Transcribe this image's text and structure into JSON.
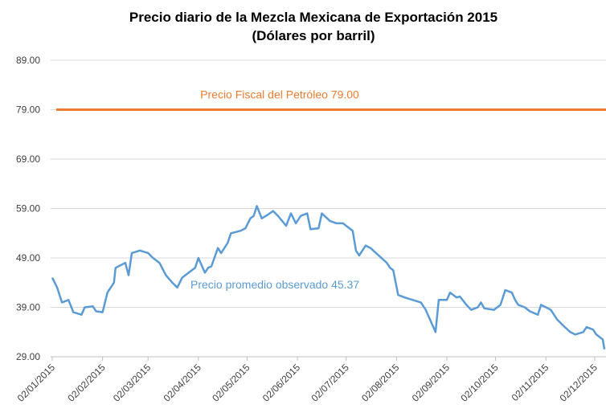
{
  "chart_data": {
    "type": "line",
    "title": "Precio diario de la Mezcla Mexicana de Exportación 2015",
    "subtitle": "(Dólares por barril)",
    "x": [
      "02/01/2015",
      "05/01/2015",
      "08/01/2015",
      "12/01/2015",
      "15/01/2015",
      "20/01/2015",
      "22/01/2015",
      "27/01/2015",
      "29/01/2015",
      "02/02/2015",
      "05/02/2015",
      "09/02/2015",
      "10/02/2015",
      "16/02/2015",
      "18/02/2015",
      "20/02/2015",
      "25/02/2015",
      "02/03/2015",
      "05/03/2015",
      "09/03/2015",
      "13/03/2015",
      "17/03/2015",
      "20/03/2015",
      "23/03/2015",
      "27/03/2015",
      "31/03/2015",
      "02/04/2015",
      "06/04/2015",
      "08/04/2015",
      "10/04/2015",
      "14/04/2015",
      "16/04/2015",
      "20/04/2015",
      "22/04/2015",
      "28/04/2015",
      "01/05/2015",
      "04/05/2015",
      "06/05/2015",
      "08/05/2015",
      "11/05/2015",
      "15/05/2015",
      "18/05/2015",
      "21/05/2015",
      "26/05/2015",
      "29/05/2015",
      "01/06/2015",
      "04/06/2015",
      "08/06/2015",
      "10/06/2015",
      "15/06/2015",
      "17/06/2015",
      "22/06/2015",
      "26/06/2015",
      "30/06/2015",
      "02/07/2015",
      "06/07/2015",
      "08/07/2015",
      "10/07/2015",
      "14/07/2015",
      "17/07/2015",
      "22/07/2015",
      "27/07/2015",
      "29/07/2015",
      "31/07/2015",
      "03/08/2015",
      "07/08/2015",
      "12/08/2015",
      "17/08/2015",
      "20/08/2015",
      "24/08/2015",
      "26/08/2015",
      "28/08/2015",
      "02/09/2015",
      "04/09/2015",
      "08/09/2015",
      "10/09/2015",
      "14/09/2015",
      "17/09/2015",
      "21/09/2015",
      "23/09/2015",
      "25/09/2015",
      "01/10/2015",
      "05/10/2015",
      "08/10/2015",
      "12/10/2015",
      "14/10/2015",
      "16/10/2015",
      "20/10/2015",
      "23/10/2015",
      "28/10/2015",
      "30/10/2015",
      "02/11/2015",
      "05/11/2015",
      "09/11/2015",
      "13/11/2015",
      "17/11/2015",
      "20/11/2015",
      "25/11/2015",
      "27/11/2015",
      "01/12/2015",
      "03/12/2015",
      "07/12/2015",
      "08/12/2015"
    ],
    "series": [
      {
        "name": "Precio diario",
        "color": "#5b9bd5",
        "values": [
          45,
          43,
          40,
          40.5,
          38,
          37.5,
          39,
          39.2,
          38.2,
          38,
          42,
          44,
          47,
          48,
          45.5,
          50,
          50.5,
          50,
          49,
          48,
          45.5,
          44,
          43,
          45,
          46,
          47,
          49,
          46,
          47,
          47.3,
          51,
          50,
          52,
          54,
          54.5,
          55,
          57,
          57.5,
          59.5,
          57,
          57.8,
          58.5,
          57.5,
          55.5,
          58,
          56,
          57.5,
          58,
          54.8,
          55,
          58,
          56.5,
          56,
          56,
          55.5,
          54.5,
          50.5,
          49.5,
          51.5,
          51,
          49.5,
          48,
          47,
          46.5,
          41.5,
          41,
          40.5,
          40,
          38.5,
          35.5,
          34,
          40.5,
          40.5,
          42,
          41,
          41.2,
          39.5,
          38.5,
          39,
          40,
          38.8,
          38.5,
          39.5,
          42.5,
          42,
          40.5,
          39.5,
          39,
          38.2,
          37.5,
          39.5,
          39,
          38.5,
          36.5,
          35.2,
          34,
          33.5,
          34,
          35,
          34.5,
          33.5,
          32.5,
          30.5
        ]
      }
    ],
    "reference_line": {
      "value": 79,
      "color": "#ed7d31",
      "label": "Precio Fiscal del Petróleo 79.00"
    },
    "annotations": [
      {
        "text": "Precio promedio observado 45.37",
        "color": "#5b9bd5"
      }
    ],
    "xlim": [
      "02/01/2015",
      "08/12/2015"
    ],
    "xticks": [
      "02/01/2015",
      "02/02/2015",
      "02/03/2015",
      "02/04/2015",
      "02/05/2015",
      "02/06/2015",
      "02/07/2015",
      "02/08/2015",
      "02/09/2015",
      "02/10/2015",
      "02/11/2015",
      "02/12/2015"
    ],
    "ylim": [
      29,
      89
    ],
    "yticks": [
      {
        "value": 29,
        "label": "29.00"
      },
      {
        "value": 39,
        "label": "39.00"
      },
      {
        "value": 49,
        "label": "49.00"
      },
      {
        "value": 59,
        "label": "59.00"
      },
      {
        "value": 69,
        "label": "69.00"
      },
      {
        "value": 79,
        "label": "79.00"
      },
      {
        "value": 89,
        "label": "89.00"
      }
    ],
    "grid": true
  }
}
